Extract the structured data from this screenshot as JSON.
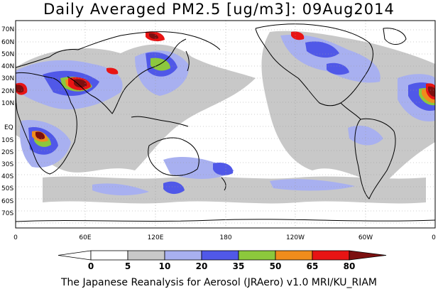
{
  "title": "Daily Averaged PM2.5 [ug/m3]: 09Aug2014",
  "credit": "The Japanese Reanalysis for Aerosol (JRAero) v1.0 MRI/KU_RIAM",
  "map": {
    "lat_labels": [
      "70N",
      "60N",
      "50N",
      "40N",
      "30N",
      "20N",
      "10N",
      "EQ",
      "10S",
      "20S",
      "30S",
      "40S",
      "50S",
      "60S",
      "70S"
    ],
    "lon_labels": [
      "0",
      "60E",
      "120E",
      "180",
      "120W",
      "60W",
      "0"
    ],
    "grid": "dotted"
  },
  "legend": {
    "thresholds": [
      "0",
      "5",
      "10",
      "20",
      "35",
      "50",
      "65",
      "80"
    ],
    "colors": [
      "#ffffff",
      "#c8c8c8",
      "#a8b0f0",
      "#5058e8",
      "#8cc83c",
      "#f08c1c",
      "#e81414",
      "#7c1010"
    ]
  }
}
